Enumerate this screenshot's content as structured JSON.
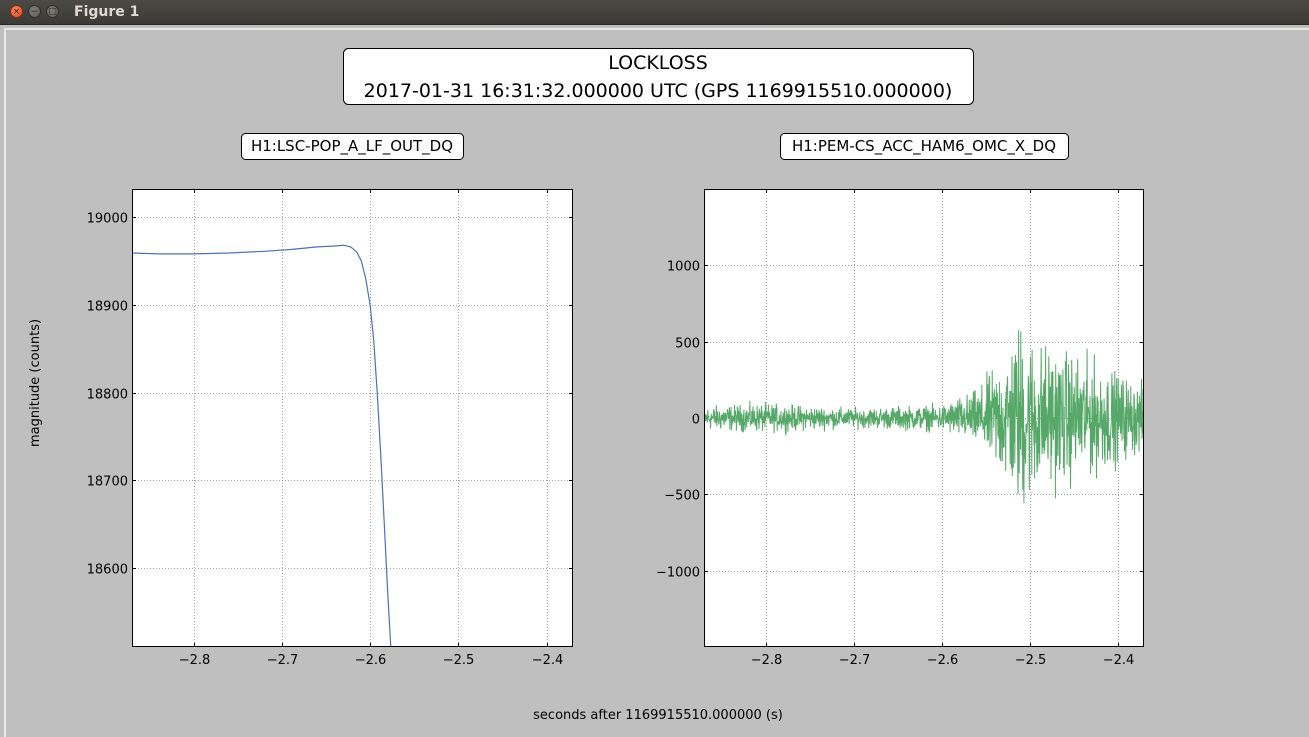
{
  "window": {
    "title": "Figure 1",
    "close_glyph": "×",
    "min_glyph": "−",
    "max_glyph": "□"
  },
  "figure": {
    "suptitle_line1": "LOCKLOSS",
    "suptitle_line2": "2017-01-31 16:31:32.000000 UTC (GPS 1169915510.000000)",
    "ylabel": "magnitude (counts)",
    "xlabel": "seconds after 1169915510.000000 (s)"
  },
  "chart_data": [
    {
      "type": "line",
      "title": "H1:LSC-POP_A_LF_OUT_DQ",
      "color": "#4c72b0",
      "grid": true,
      "xlim": [
        -2.87,
        -2.37
      ],
      "ylim": [
        18510,
        19032
      ],
      "xticks": [
        -2.8,
        -2.7,
        -2.6,
        -2.5,
        -2.4
      ],
      "xtick_labels": [
        "−2.8",
        "−2.7",
        "−2.6",
        "−2.5",
        "−2.4"
      ],
      "yticks": [
        18600,
        18700,
        18800,
        18900,
        19000
      ],
      "ytick_labels": [
        "18600",
        "18700",
        "18800",
        "18900",
        "19000"
      ],
      "series": [
        {
          "x": [
            -2.87,
            -2.84,
            -2.8,
            -2.76,
            -2.72,
            -2.69,
            -2.66,
            -2.64,
            -2.63,
            -2.622,
            -2.615,
            -2.61,
            -2.605,
            -2.6,
            -2.596,
            -2.592,
            -2.588,
            -2.584,
            -2.58,
            -2.576
          ],
          "values": [
            18959,
            18958,
            18958,
            18959,
            18961,
            18963,
            18966,
            18967,
            18968,
            18966,
            18960,
            18950,
            18930,
            18900,
            18860,
            18800,
            18730,
            18650,
            18570,
            18500
          ]
        }
      ]
    },
    {
      "type": "line",
      "title": "H1:PEM-CS_ACC_HAM6_OMC_X_DQ",
      "color": "#55a868",
      "grid": true,
      "xlim": [
        -2.87,
        -2.37
      ],
      "ylim": [
        -1500,
        1500
      ],
      "xticks": [
        -2.8,
        -2.7,
        -2.6,
        -2.5,
        -2.4
      ],
      "xtick_labels": [
        "−2.8",
        "−2.7",
        "−2.6",
        "−2.5",
        "−2.4"
      ],
      "yticks": [
        -1000,
        -500,
        0,
        500,
        1000
      ],
      "ytick_labels": [
        "−1000",
        "−500",
        "0",
        "500",
        "1000"
      ],
      "noise_envelope": {
        "x": [
          -2.87,
          -2.8,
          -2.7,
          -2.6,
          -2.56,
          -2.54,
          -2.52,
          -2.51,
          -2.5,
          -2.48,
          -2.46,
          -2.44,
          -2.42,
          -2.4,
          -2.37
        ],
        "amplitude": [
          110,
          130,
          90,
          120,
          250,
          450,
          700,
          900,
          750,
          650,
          600,
          550,
          500,
          400,
          300
        ]
      }
    }
  ]
}
